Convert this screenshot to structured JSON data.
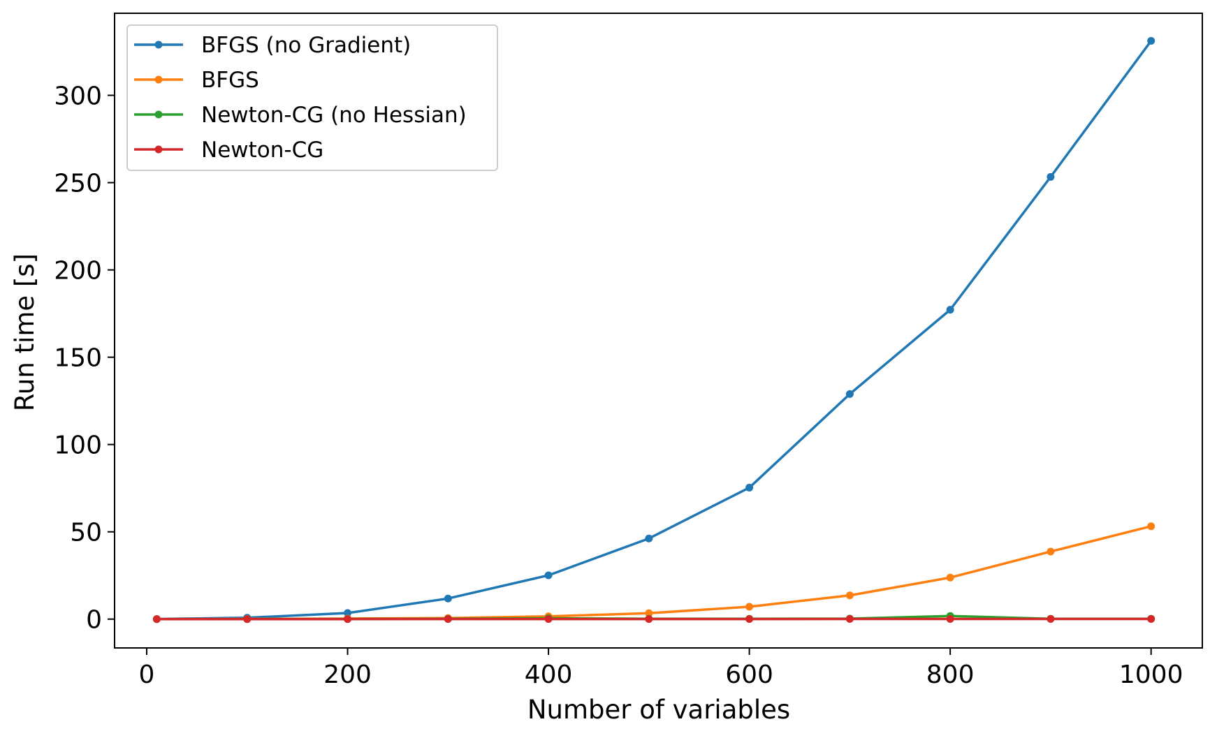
{
  "chart_data": {
    "type": "line",
    "title": "",
    "xlabel": "Number of variables",
    "ylabel": "Run time [s]",
    "xlim": [
      -32,
      1051
    ],
    "ylim": [
      -16.5,
      347
    ],
    "xticks": [
      0,
      200,
      400,
      600,
      800,
      1000
    ],
    "yticks": [
      0,
      50,
      100,
      150,
      200,
      250,
      300
    ],
    "grid": false,
    "legend_position": "top-left",
    "x": [
      10,
      100,
      200,
      300,
      400,
      500,
      600,
      700,
      800,
      900,
      1000
    ],
    "series": [
      {
        "name": "BFGS (no Gradient)",
        "color": "#1f77b4",
        "values": [
          0.05,
          0.8,
          3.5,
          11.8,
          25.1,
          46.2,
          75.3,
          128.9,
          177.2,
          253.3,
          331.2
        ]
      },
      {
        "name": "BFGS",
        "color": "#ff7f0e",
        "values": [
          0.02,
          0.1,
          0.3,
          0.6,
          1.6,
          3.4,
          7.1,
          13.6,
          23.8,
          38.7,
          53.2
        ]
      },
      {
        "name": "Newton-CG (no Hessian)",
        "color": "#2ca02c",
        "values": [
          0.0,
          0.02,
          0.1,
          0.2,
          0.5,
          0.2,
          0.2,
          0.3,
          1.8,
          0.2,
          0.2
        ]
      },
      {
        "name": "Newton-CG",
        "color": "#d62728",
        "values": [
          0.0,
          0.01,
          0.02,
          0.04,
          0.05,
          0.05,
          0.06,
          0.08,
          0.1,
          0.1,
          0.1
        ]
      }
    ]
  }
}
